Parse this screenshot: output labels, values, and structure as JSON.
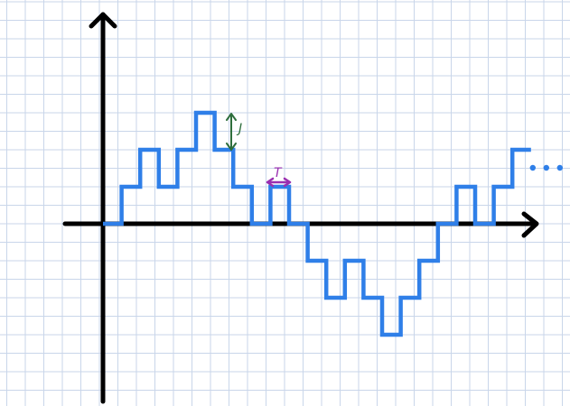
{
  "colors": {
    "background": "#ffffff",
    "grid": "#c9d6ea",
    "axes": "#000000",
    "signal": "#2f7fe8",
    "step_height_marker": "#2e6e3c",
    "step_width_marker": "#9a2fb0"
  },
  "labels": {
    "step_height": "J",
    "step_width": "T"
  },
  "signal": {
    "levels": [
      0,
      1,
      2,
      1,
      2,
      3,
      2,
      1,
      0,
      1,
      0,
      -1,
      -2,
      -1,
      -2,
      -3,
      -2,
      -1,
      0,
      1,
      0,
      1,
      2
    ],
    "continues": true
  }
}
